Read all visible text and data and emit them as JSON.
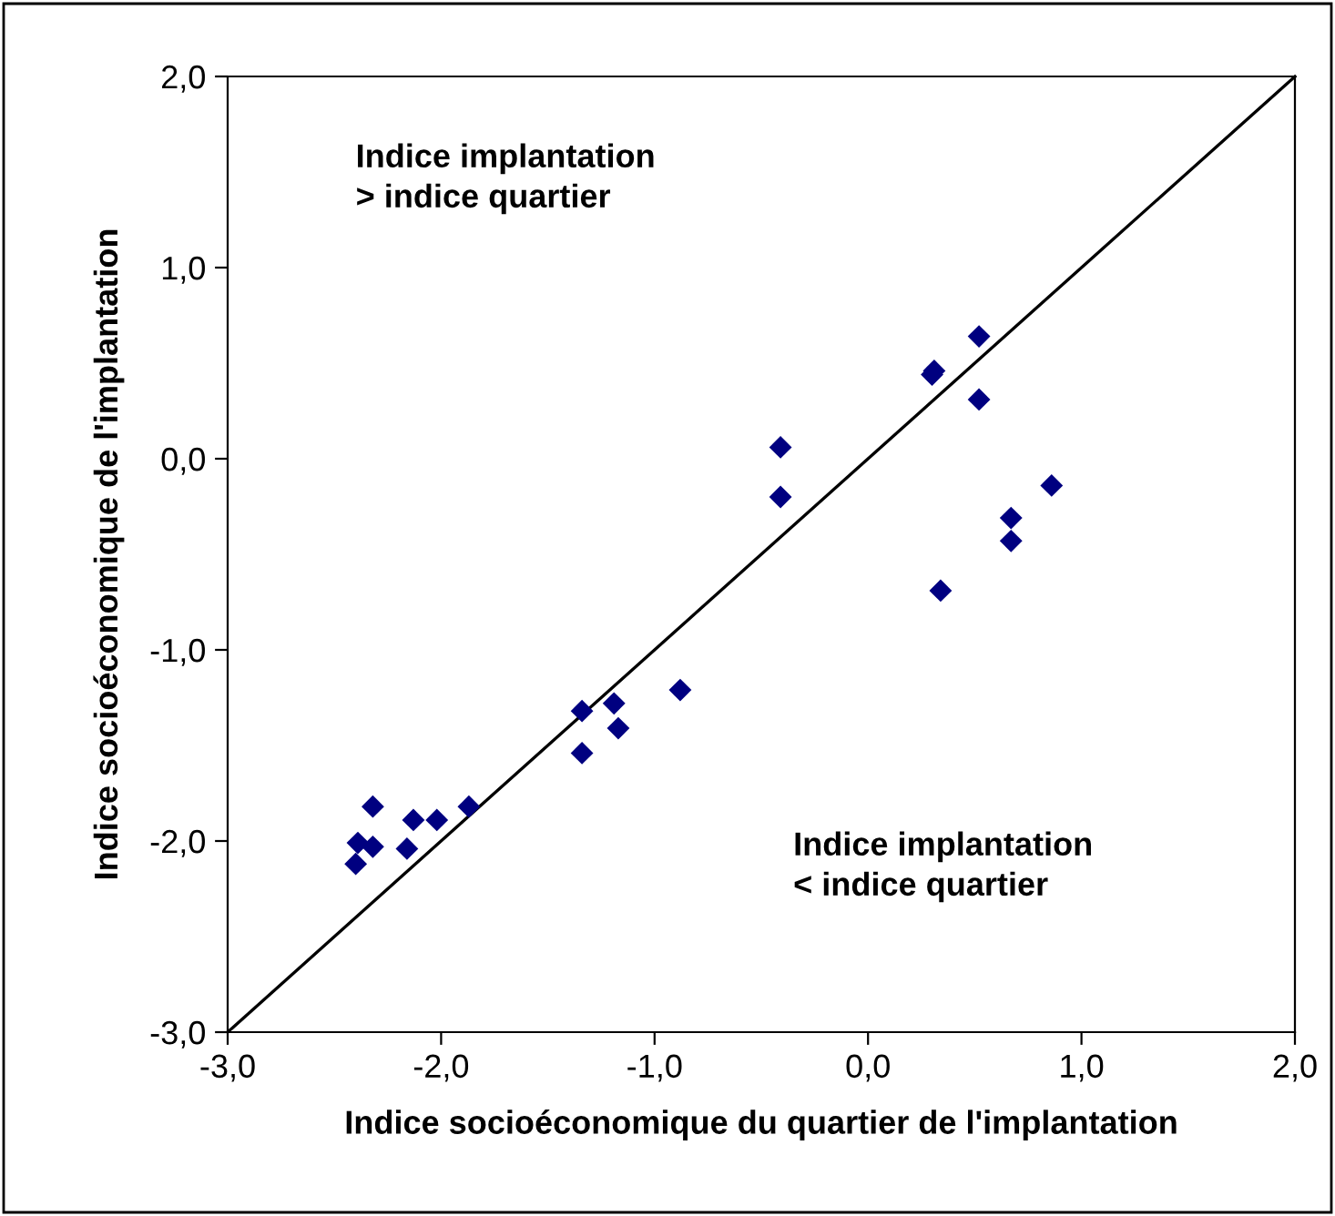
{
  "chart_data": {
    "type": "scatter",
    "xlabel": "Indice socioéconomique du quartier de l'implantation",
    "ylabel": "Indice socioéconomique de l'implantation",
    "xlim": [
      -3,
      2
    ],
    "ylim": [
      -3,
      2
    ],
    "xticks": [
      {
        "value": -3,
        "label": "-3,0"
      },
      {
        "value": -2,
        "label": "-2,0"
      },
      {
        "value": -1,
        "label": "-1,0"
      },
      {
        "value": 0,
        "label": "0,0"
      },
      {
        "value": 1,
        "label": "1,0"
      },
      {
        "value": 2,
        "label": "2,0"
      }
    ],
    "yticks": [
      {
        "value": -3,
        "label": "-3,0"
      },
      {
        "value": -2,
        "label": "-2,0"
      },
      {
        "value": -1,
        "label": "-1,0"
      },
      {
        "value": 0,
        "label": "0,0"
      },
      {
        "value": 1,
        "label": "1,0"
      },
      {
        "value": 2,
        "label": "2,0"
      }
    ],
    "grid": false,
    "legend": false,
    "annotations": [
      "Indice implantation\n> indice quartier",
      "Indice implantation\n< indice quartier"
    ],
    "series": [
      {
        "marker": "diamond",
        "color": "#000080",
        "x": [
          -2.4,
          -2.39,
          -2.32,
          -2.32,
          -2.16,
          -2.13,
          -2.02,
          -1.87,
          -1.34,
          -1.19,
          -1.17,
          -1.34,
          -0.88,
          -0.41,
          -0.41,
          0.3,
          0.31,
          0.52,
          0.52,
          0.86,
          0.67,
          0.67,
          0.34
        ],
        "values": [
          -2.12,
          -2.01,
          -2.03,
          -1.82,
          -2.04,
          -1.89,
          -1.89,
          -1.82,
          -1.32,
          -1.28,
          -1.41,
          -1.54,
          -1.21,
          0.06,
          -0.2,
          0.44,
          0.46,
          0.64,
          0.31,
          -0.14,
          -0.31,
          -0.43,
          -0.69
        ]
      },
      {
        "type": "line",
        "color": "#000000",
        "x": [
          -3,
          2
        ],
        "values": [
          -3,
          2
        ],
        "line_style": "solid"
      }
    ]
  }
}
